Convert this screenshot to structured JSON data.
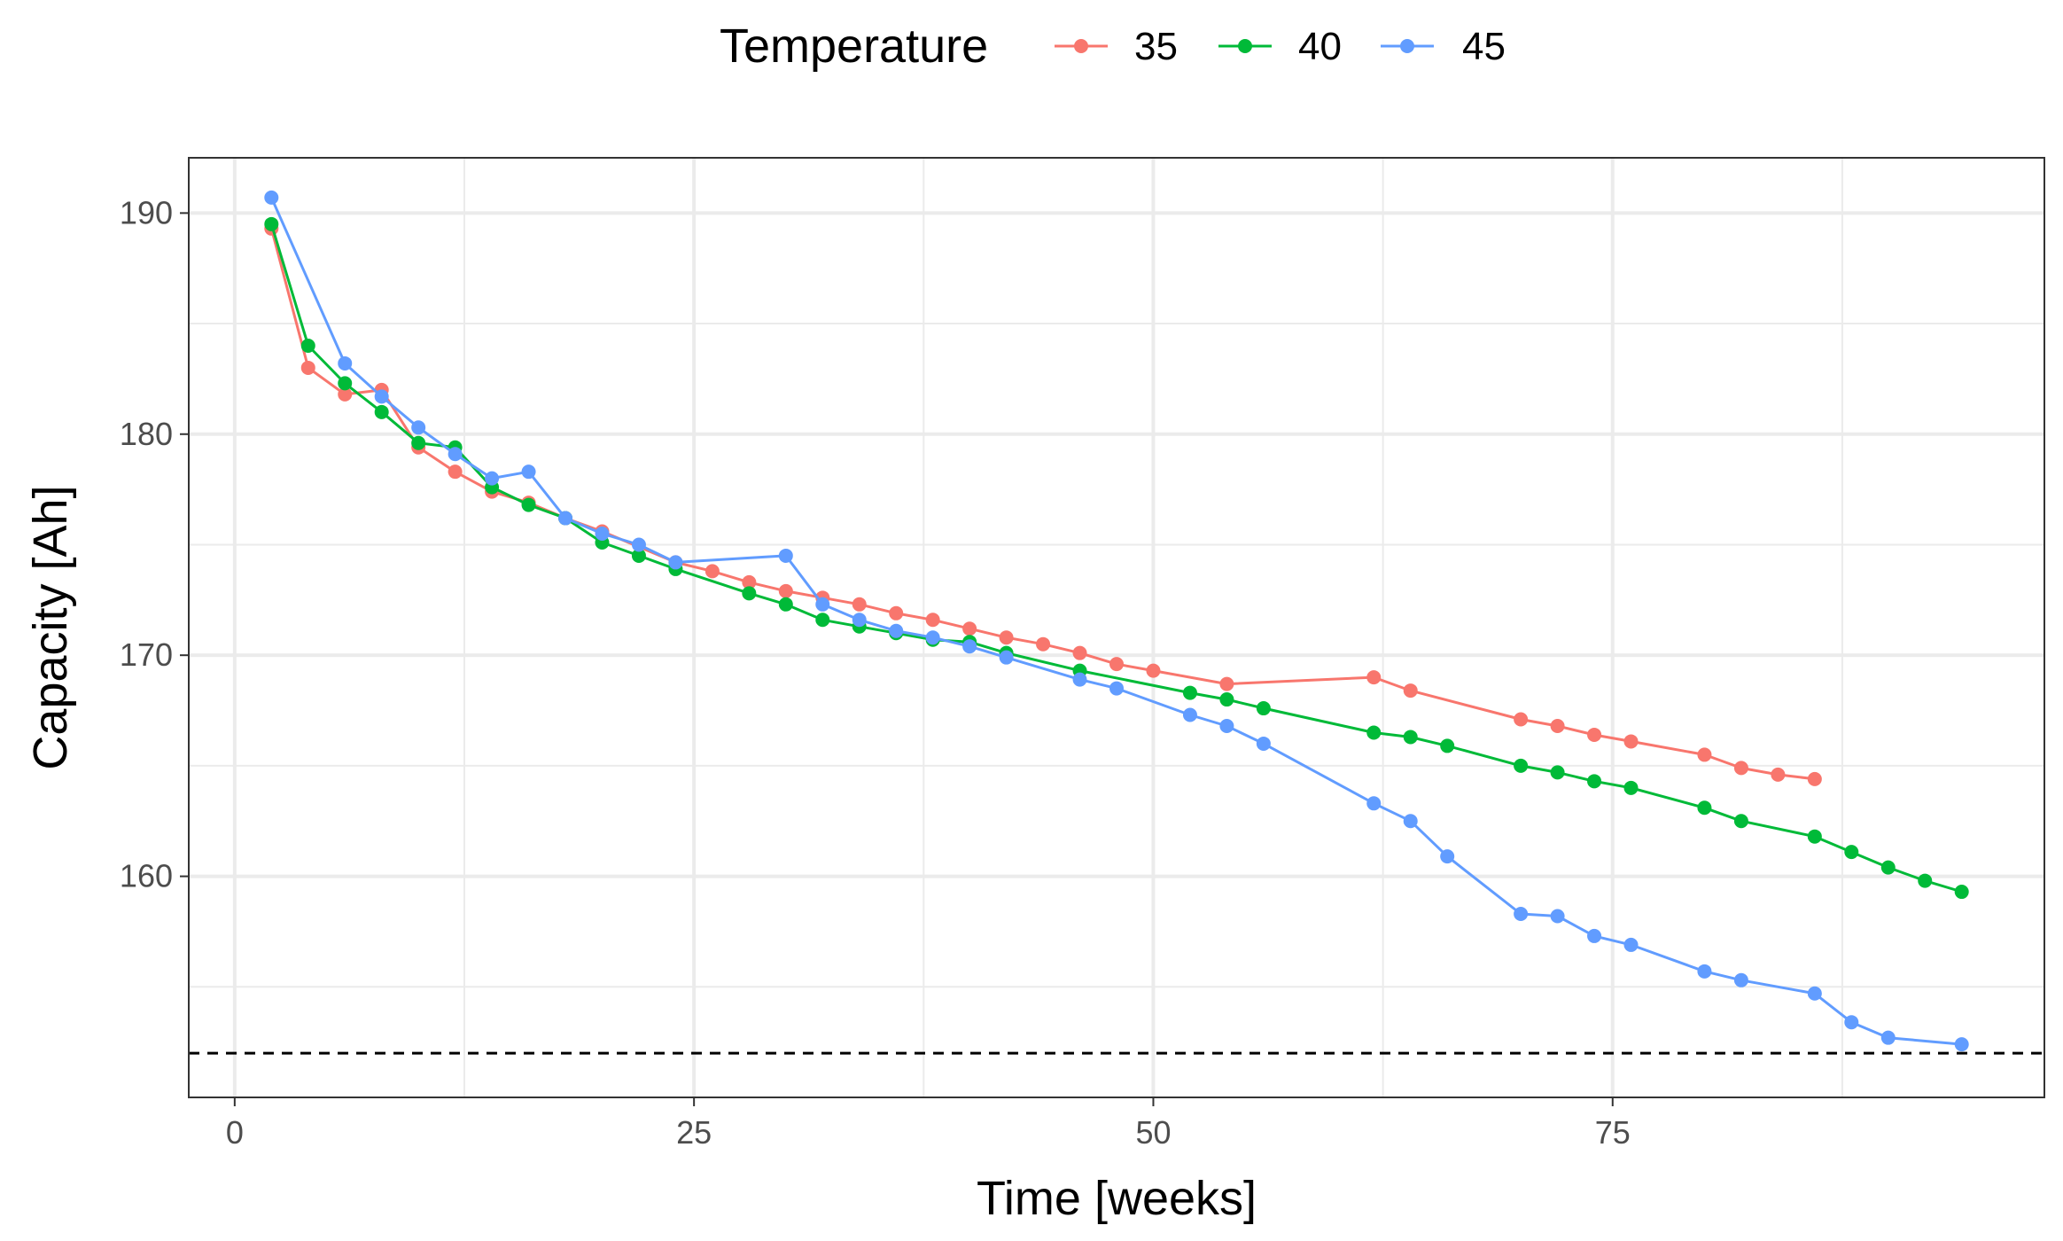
{
  "chart_data": {
    "type": "line",
    "title": "",
    "xlabel": "Time [weeks]",
    "ylabel": "Capacity [Ah]",
    "xlim": [
      -2.5,
      98.5
    ],
    "ylim": [
      150,
      192.5
    ],
    "x_ticks": [
      0,
      25,
      50,
      75
    ],
    "x_minor": [
      12.5,
      37.5,
      62.5,
      87.5
    ],
    "y_ticks": [
      160,
      170,
      180,
      190
    ],
    "y_minor": [
      155,
      165,
      175,
      185
    ],
    "grid": true,
    "legend": {
      "title": "Temperature",
      "position": "top"
    },
    "reference_line": {
      "y": 152,
      "style": "dashed",
      "color": "#000000"
    },
    "series": [
      {
        "name": "35",
        "color": "#F8766D",
        "points": [
          [
            2,
            189.3
          ],
          [
            4,
            183.0
          ],
          [
            6,
            181.8
          ],
          [
            8,
            182.0
          ],
          [
            10,
            179.4
          ],
          [
            12,
            178.3
          ],
          [
            14,
            177.4
          ],
          [
            16,
            176.9
          ],
          [
            18,
            176.2
          ],
          [
            20,
            175.6
          ],
          [
            24,
            174.2
          ],
          [
            26,
            173.8
          ],
          [
            28,
            173.3
          ],
          [
            30,
            172.9
          ],
          [
            32,
            172.6
          ],
          [
            34,
            172.3
          ],
          [
            36,
            171.9
          ],
          [
            38,
            171.6
          ],
          [
            40,
            171.2
          ],
          [
            42,
            170.8
          ],
          [
            44,
            170.5
          ],
          [
            46,
            170.1
          ],
          [
            48,
            169.6
          ],
          [
            50,
            169.3
          ],
          [
            54,
            168.7
          ],
          [
            62,
            169.0
          ],
          [
            64,
            168.4
          ],
          [
            70,
            167.1
          ],
          [
            72,
            166.8
          ],
          [
            74,
            166.4
          ],
          [
            76,
            166.1
          ],
          [
            80,
            165.5
          ],
          [
            82,
            164.9
          ],
          [
            84,
            164.6
          ],
          [
            86,
            164.4
          ]
        ]
      },
      {
        "name": "40",
        "color": "#00BA38",
        "points": [
          [
            2,
            189.5
          ],
          [
            4,
            184.0
          ],
          [
            6,
            182.3
          ],
          [
            8,
            181.0
          ],
          [
            10,
            179.6
          ],
          [
            12,
            179.4
          ],
          [
            14,
            177.6
          ],
          [
            16,
            176.8
          ],
          [
            18,
            176.2
          ],
          [
            20,
            175.1
          ],
          [
            22,
            174.5
          ],
          [
            24,
            173.9
          ],
          [
            28,
            172.8
          ],
          [
            30,
            172.3
          ],
          [
            32,
            171.6
          ],
          [
            34,
            171.3
          ],
          [
            36,
            171.0
          ],
          [
            38,
            170.7
          ],
          [
            40,
            170.6
          ],
          [
            42,
            170.1
          ],
          [
            46,
            169.3
          ],
          [
            52,
            168.3
          ],
          [
            54,
            168.0
          ],
          [
            56,
            167.6
          ],
          [
            62,
            166.5
          ],
          [
            64,
            166.3
          ],
          [
            66,
            165.9
          ],
          [
            70,
            165.0
          ],
          [
            72,
            164.7
          ],
          [
            74,
            164.3
          ],
          [
            76,
            164.0
          ],
          [
            80,
            163.1
          ],
          [
            82,
            162.5
          ],
          [
            86,
            161.8
          ],
          [
            88,
            161.1
          ],
          [
            90,
            160.4
          ],
          [
            92,
            159.8
          ],
          [
            94,
            159.3
          ]
        ]
      },
      {
        "name": "45",
        "color": "#619CFF",
        "points": [
          [
            2,
            190.7
          ],
          [
            6,
            183.2
          ],
          [
            8,
            181.7
          ],
          [
            10,
            180.3
          ],
          [
            12,
            179.1
          ],
          [
            14,
            178.0
          ],
          [
            16,
            178.3
          ],
          [
            18,
            176.2
          ],
          [
            20,
            175.5
          ],
          [
            22,
            175.0
          ],
          [
            24,
            174.2
          ],
          [
            30,
            174.5
          ],
          [
            32,
            172.3
          ],
          [
            34,
            171.6
          ],
          [
            36,
            171.1
          ],
          [
            38,
            170.8
          ],
          [
            40,
            170.4
          ],
          [
            42,
            169.9
          ],
          [
            46,
            168.9
          ],
          [
            48,
            168.5
          ],
          [
            52,
            167.3
          ],
          [
            54,
            166.8
          ],
          [
            56,
            166.0
          ],
          [
            62,
            163.3
          ],
          [
            64,
            162.5
          ],
          [
            66,
            160.9
          ],
          [
            70,
            158.3
          ],
          [
            72,
            158.2
          ],
          [
            74,
            157.3
          ],
          [
            76,
            156.9
          ],
          [
            80,
            155.7
          ],
          [
            82,
            155.3
          ],
          [
            86,
            154.7
          ],
          [
            88,
            153.4
          ],
          [
            90,
            152.7
          ],
          [
            94,
            152.4
          ]
        ]
      }
    ]
  }
}
